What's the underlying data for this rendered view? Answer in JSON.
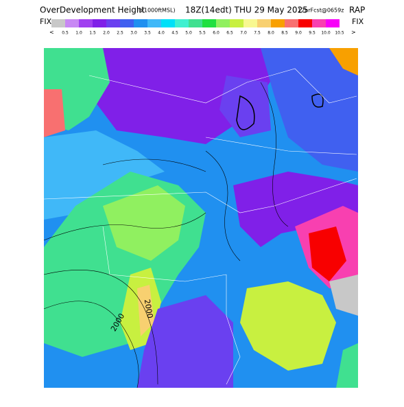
{
  "header": {
    "title": "OverDevelopment Height",
    "units": "(x1000ftMSL)",
    "valid": "18Z(14edt) THU 29 May 2025",
    "forecast": "12hrFcst@0659z",
    "model": "RAP"
  },
  "nav": {
    "left_fix": "FIX",
    "right_fix": "FIX",
    "prev": "<",
    "next": ">"
  },
  "legend": [
    {
      "color": "#c8c8c8",
      "label": "0.5"
    },
    {
      "color": "#c888f4",
      "label": "1.0"
    },
    {
      "color": "#a040f0",
      "label": "1.5"
    },
    {
      "color": "#8020e8",
      "label": "2.0"
    },
    {
      "color": "#6a40f0",
      "label": "2.5"
    },
    {
      "color": "#4060f0",
      "label": "3.0"
    },
    {
      "color": "#2090f0",
      "label": "3.5"
    },
    {
      "color": "#40b8f8",
      "label": "4.0"
    },
    {
      "color": "#00e0f8",
      "label": "4.5"
    },
    {
      "color": "#40f0d0",
      "label": "5.0"
    },
    {
      "color": "#40e090",
      "label": "5.5"
    },
    {
      "color": "#20e040",
      "label": "6.0"
    },
    {
      "color": "#90f060",
      "label": "6.5"
    },
    {
      "color": "#c8f040",
      "label": "7.0"
    },
    {
      "color": "#f8f890",
      "label": "7.5"
    },
    {
      "color": "#f8d070",
      "label": "8.0"
    },
    {
      "color": "#f8a000",
      "label": "8.5"
    },
    {
      "color": "#f87070",
      "label": "9.0"
    },
    {
      "color": "#f80000",
      "label": "9.5"
    },
    {
      "color": "#f840b0",
      "label": "10.0"
    },
    {
      "color": "#f800f8",
      "label": "10.5"
    }
  ],
  "contour_labels": [
    "2000",
    "2000"
  ]
}
